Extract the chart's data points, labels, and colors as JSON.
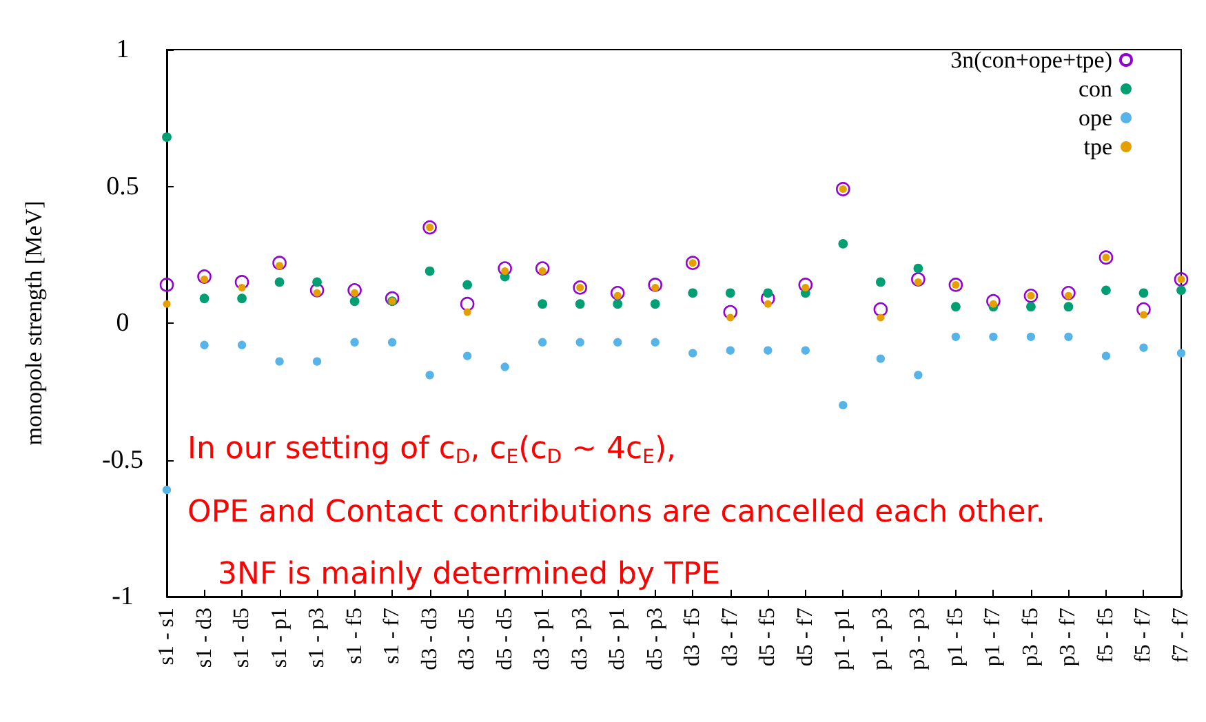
{
  "chart_data": {
    "type": "scatter",
    "ylabel": "monopole strength [MeV]",
    "categories": [
      "s1 - s1",
      "s1 - d3",
      "s1 - d5",
      "s1 - p1",
      "s1 - p3",
      "s1 - f5",
      "s1 - f7",
      "d3 - d3",
      "d3 - d5",
      "d5 - d5",
      "d3 - p1",
      "d3 - p3",
      "d5 - p1",
      "d5 - p3",
      "d3 - f5",
      "d3 - f7",
      "d5 - f5",
      "d5 - f7",
      "p1 - p1",
      "p1 - p3",
      "p3 - p3",
      "p1 - f5",
      "p1 - f7",
      "p3 - f5",
      "p3 - f7",
      "f5 - f5",
      "f5 - f7",
      "f7 - f7"
    ],
    "series": [
      {
        "name": "3n(con+ope+tpe)",
        "color": "#9400d3",
        "marker": "open circle",
        "values": [
          0.14,
          0.17,
          0.15,
          0.22,
          0.12,
          0.12,
          0.09,
          0.35,
          0.07,
          0.2,
          0.2,
          0.13,
          0.11,
          0.14,
          0.22,
          0.04,
          0.09,
          0.14,
          0.49,
          0.05,
          0.16,
          0.14,
          0.08,
          0.1,
          0.11,
          0.24,
          0.05,
          0.16
        ]
      },
      {
        "name": "con",
        "color": "#009e73",
        "values": [
          0.68,
          0.09,
          0.09,
          0.15,
          0.15,
          0.08,
          0.08,
          0.19,
          0.14,
          0.17,
          0.07,
          0.07,
          0.07,
          0.07,
          0.11,
          0.11,
          0.11,
          0.11,
          0.29,
          0.15,
          0.2,
          0.06,
          0.06,
          0.06,
          0.06,
          0.12,
          0.11,
          0.12
        ]
      },
      {
        "name": "ope",
        "color": "#56b4e9",
        "values": [
          -0.61,
          -0.08,
          -0.08,
          -0.14,
          -0.14,
          -0.07,
          -0.07,
          -0.19,
          -0.12,
          -0.16,
          -0.07,
          -0.07,
          -0.07,
          -0.07,
          -0.11,
          -0.1,
          -0.1,
          -0.1,
          -0.3,
          -0.13,
          -0.19,
          -0.05,
          -0.05,
          -0.05,
          -0.05,
          -0.12,
          -0.09,
          -0.11
        ]
      },
      {
        "name": "tpe",
        "color": "#e69f00",
        "values": [
          0.07,
          0.16,
          0.13,
          0.21,
          0.11,
          0.11,
          0.08,
          0.35,
          0.04,
          0.19,
          0.19,
          0.13,
          0.1,
          0.13,
          0.22,
          0.02,
          0.07,
          0.13,
          0.49,
          0.02,
          0.15,
          0.14,
          0.07,
          0.1,
          0.1,
          0.24,
          0.03,
          0.16
        ]
      }
    ],
    "ylim": [
      -1,
      1
    ],
    "yticks": [
      -1,
      -0.5,
      0,
      0.5,
      1
    ],
    "marker": "circle",
    "grid": false,
    "legend": "top right",
    "annotations": [
      "In our setting of c$_{D}$, c$_{E}$(c$_{D}$ ∼ 4c$_{E}$),",
      "OPE and Contact contributions are cancelled each other.",
      "3NF is mainly determined by TPE"
    ]
  }
}
